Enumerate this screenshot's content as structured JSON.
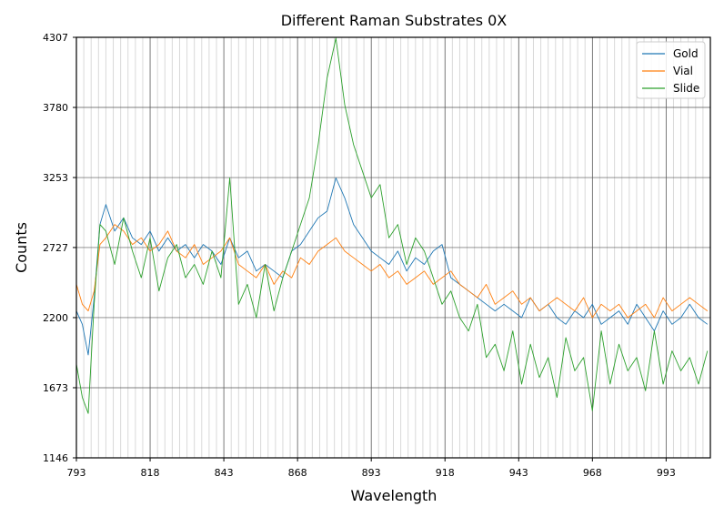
{
  "chart_data": {
    "type": "line",
    "title": "Different Raman Substrates 0X",
    "xlabel": "Wavelength",
    "ylabel": "Counts",
    "xlim": [
      793,
      1008
    ],
    "ylim": [
      1146,
      4307
    ],
    "xticks": [
      793,
      818,
      843,
      868,
      893,
      918,
      943,
      968,
      993
    ],
    "yticks": [
      1146,
      1673,
      2200,
      2727,
      3253,
      3780,
      4307
    ],
    "minor_x_grid_step": 2.5,
    "grid": true,
    "legend_position": "top-right",
    "series": [
      {
        "name": "Gold",
        "color": "#1f77b4",
        "x": [
          793,
          795,
          797,
          799,
          801,
          803,
          806,
          809,
          812,
          815,
          818,
          821,
          824,
          827,
          830,
          833,
          836,
          839,
          842,
          845,
          848,
          851,
          854,
          857,
          860,
          863,
          866,
          869,
          872,
          875,
          878,
          881,
          884,
          887,
          890,
          893,
          896,
          899,
          902,
          905,
          908,
          911,
          914,
          917,
          920,
          923,
          926,
          929,
          932,
          935,
          938,
          941,
          944,
          947,
          950,
          953,
          956,
          959,
          962,
          965,
          968,
          971,
          974,
          977,
          980,
          983,
          986,
          989,
          992,
          995,
          998,
          1001,
          1004,
          1007
        ],
        "y": [
          2250,
          2150,
          1920,
          2350,
          2900,
          3050,
          2850,
          2950,
          2800,
          2750,
          2850,
          2700,
          2800,
          2700,
          2750,
          2650,
          2750,
          2700,
          2600,
          2800,
          2650,
          2700,
          2550,
          2600,
          2550,
          2500,
          2700,
          2750,
          2850,
          2950,
          3000,
          3250,
          3100,
          2900,
          2800,
          2700,
          2650,
          2600,
          2700,
          2550,
          2650,
          2600,
          2700,
          2750,
          2500,
          2450,
          2400,
          2350,
          2300,
          2250,
          2300,
          2250,
          2200,
          2350,
          2250,
          2300,
          2200,
          2150,
          2250,
          2200,
          2300,
          2150,
          2200,
          2250,
          2150,
          2300,
          2200,
          2100,
          2250,
          2150,
          2200,
          2300,
          2200,
          2150
        ]
      },
      {
        "name": "Vial",
        "color": "#ff7f0e",
        "x": [
          793,
          795,
          797,
          799,
          801,
          803,
          806,
          809,
          812,
          815,
          818,
          821,
          824,
          827,
          830,
          833,
          836,
          839,
          842,
          845,
          848,
          851,
          854,
          857,
          860,
          863,
          866,
          869,
          872,
          875,
          878,
          881,
          884,
          887,
          890,
          893,
          896,
          899,
          902,
          905,
          908,
          911,
          914,
          917,
          920,
          923,
          926,
          929,
          932,
          935,
          938,
          941,
          944,
          947,
          950,
          953,
          956,
          959,
          962,
          965,
          968,
          971,
          974,
          977,
          980,
          983,
          986,
          989,
          992,
          995,
          998,
          1001,
          1004,
          1007
        ],
        "y": [
          2450,
          2300,
          2250,
          2400,
          2750,
          2800,
          2900,
          2850,
          2750,
          2800,
          2700,
          2750,
          2850,
          2700,
          2650,
          2750,
          2600,
          2650,
          2700,
          2800,
          2600,
          2550,
          2500,
          2600,
          2450,
          2550,
          2500,
          2650,
          2600,
          2700,
          2750,
          2800,
          2700,
          2650,
          2600,
          2550,
          2600,
          2500,
          2550,
          2450,
          2500,
          2550,
          2450,
          2500,
          2550,
          2450,
          2400,
          2350,
          2450,
          2300,
          2350,
          2400,
          2300,
          2350,
          2250,
          2300,
          2350,
          2300,
          2250,
          2350,
          2200,
          2300,
          2250,
          2300,
          2200,
          2250,
          2300,
          2200,
          2350,
          2250,
          2300,
          2350,
          2300,
          2250
        ]
      },
      {
        "name": "Slide",
        "color": "#2ca02c",
        "x": [
          793,
          795,
          797,
          799,
          801,
          803,
          806,
          809,
          812,
          815,
          818,
          821,
          824,
          827,
          830,
          833,
          836,
          839,
          842,
          845,
          848,
          851,
          854,
          857,
          860,
          863,
          866,
          869,
          872,
          875,
          878,
          881,
          884,
          887,
          890,
          893,
          896,
          899,
          902,
          905,
          908,
          911,
          914,
          917,
          920,
          923,
          926,
          929,
          932,
          935,
          938,
          941,
          944,
          947,
          950,
          953,
          956,
          959,
          962,
          965,
          968,
          971,
          974,
          977,
          980,
          983,
          986,
          989,
          992,
          995,
          998,
          1001,
          1004,
          1007
        ],
        "y": [
          1850,
          1600,
          1480,
          2300,
          2900,
          2850,
          2600,
          2950,
          2700,
          2500,
          2800,
          2400,
          2650,
          2750,
          2500,
          2600,
          2450,
          2700,
          2500,
          3250,
          2300,
          2450,
          2200,
          2600,
          2250,
          2500,
          2700,
          2900,
          3100,
          3500,
          4000,
          4300,
          3800,
          3500,
          3300,
          3100,
          3200,
          2800,
          2900,
          2600,
          2800,
          2700,
          2500,
          2300,
          2400,
          2200,
          2100,
          2300,
          1900,
          2000,
          1800,
          2100,
          1700,
          2000,
          1750,
          1900,
          1600,
          2050,
          1800,
          1900,
          1500,
          2100,
          1700,
          2000,
          1800,
          1900,
          1650,
          2100,
          1700,
          1950,
          1800,
          1900,
          1700,
          1950
        ]
      }
    ]
  }
}
